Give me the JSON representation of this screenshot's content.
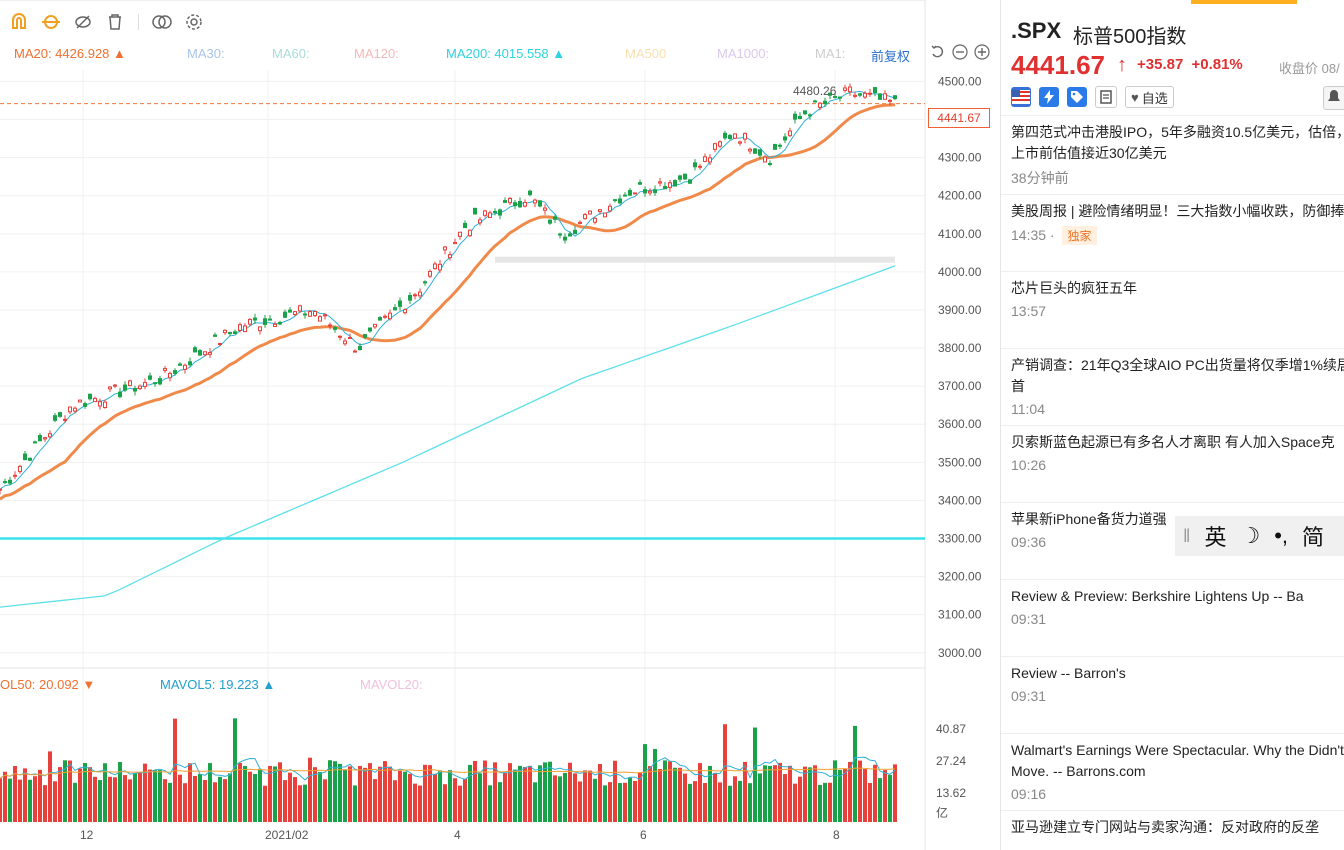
{
  "toolbar": {
    "icons": [
      "magnet-icon",
      "link-icon",
      "eye-off-icon",
      "trash-icon",
      "compare-icon",
      "gear-icon"
    ]
  },
  "ma_indicators": {
    "ma20": "MA20: 4426.928 ▲",
    "ma30": "MA30:",
    "ma60": "MA60:",
    "ma120": "MA120:",
    "ma200": "MA200: 4015.558 ▲",
    "ma500": "MA500",
    "ma1000": "MA1000:",
    "ma1": "MA1:",
    "adjust": "前复权"
  },
  "chart_data": {
    "type": "candlestick",
    "y_ticks": [
      "4500.00",
      "4400.00",
      "4300.00",
      "4200.00",
      "4100.00",
      "4000.00",
      "3900.00",
      "3800.00",
      "3700.00",
      "3600.00",
      "3500.00",
      "3400.00",
      "3300.00",
      "3200.00",
      "3100.00",
      "3000.00"
    ],
    "ylim": [
      2960,
      4530
    ],
    "x_ticks": [
      "12",
      "2021/02",
      "4",
      "6",
      "8"
    ],
    "high_label": "4480.26",
    "current_price": "4441.67",
    "ma20_last": 4426.928,
    "ma200_last": 4015.558,
    "horizontal_line": 3300,
    "series_trend": [
      {
        "x": 0,
        "close": 3430
      },
      {
        "x": 0.08,
        "close": 3650
      },
      {
        "x": 0.18,
        "close": 3720
      },
      {
        "x": 0.27,
        "close": 3860
      },
      {
        "x": 0.35,
        "close": 3900
      },
      {
        "x": 0.4,
        "close": 3800
      },
      {
        "x": 0.47,
        "close": 3960
      },
      {
        "x": 0.52,
        "close": 4120
      },
      {
        "x": 0.59,
        "close": 4200
      },
      {
        "x": 0.63,
        "close": 4100
      },
      {
        "x": 0.7,
        "close": 4210
      },
      {
        "x": 0.77,
        "close": 4250
      },
      {
        "x": 0.82,
        "close": 4370
      },
      {
        "x": 0.86,
        "close": 4300
      },
      {
        "x": 0.9,
        "close": 4420
      },
      {
        "x": 0.95,
        "close": 4470
      },
      {
        "x": 1.0,
        "close": 4441.67
      }
    ],
    "ma200_trend": [
      {
        "x": 0,
        "v": 3120
      },
      {
        "x": 0.12,
        "v": 3150
      },
      {
        "x": 0.25,
        "v": 3300
      },
      {
        "x": 0.45,
        "v": 3500
      },
      {
        "x": 0.65,
        "v": 3720
      },
      {
        "x": 0.82,
        "v": 3860
      },
      {
        "x": 1.0,
        "v": 4015.558
      }
    ]
  },
  "volume": {
    "mavol50": "OL50: 20.092 ▼",
    "mavol5": "MAVOL5: 19.223 ▲",
    "mavol20": "MAVOL20:",
    "y_ticks": [
      "40.87",
      "27.24",
      "13.62",
      "亿"
    ]
  },
  "quote": {
    "symbol": ".SPX",
    "name": "标普500指数",
    "price": "4441.67",
    "arrow": "↑",
    "change": "+35.87",
    "change_pct": "+0.81%",
    "close_label": "收盘价 08/",
    "favorite": "自选"
  },
  "news": [
    {
      "title": "第四范式冲击港股IPO，5年多融资10.5亿美元，估倍，上市前估值接近30亿美元",
      "time": "38分钟前",
      "tag": ""
    },
    {
      "title": "美股周报 | 避险情绪明显！三大指数小幅收跌，防御捧",
      "time": "14:35 ·",
      "tag": "独家"
    },
    {
      "title": "芯片巨头的疯狂五年",
      "time": "13:57",
      "tag": ""
    },
    {
      "title": "产销调查：21年Q3全球AIO PC出货量将仅季增1%续居首",
      "time": "11:04",
      "tag": ""
    },
    {
      "title": "贝索斯蓝色起源已有多名人才离职 有人加入Space克",
      "time": "10:26",
      "tag": ""
    },
    {
      "title": "苹果新iPhone备货力道强",
      "time": "09:36",
      "tag": ""
    },
    {
      "title": "Review & Preview: Berkshire Lightens Up -- Ba",
      "time": "09:31",
      "tag": ""
    },
    {
      "title": "Review -- Barron's",
      "time": "09:31",
      "tag": ""
    },
    {
      "title": "Walmart's Earnings Were Spectacular. Why the Didn't Move. -- Barrons.com",
      "time": "09:16",
      "tag": ""
    },
    {
      "title": "亚马逊建立专门网站与卖家沟通：反对政府的反垄",
      "time": "",
      "tag": ""
    }
  ],
  "ime": {
    "lang": "英",
    "moon": "☽",
    "punct": "•,",
    "mode": "简"
  },
  "colors": {
    "up": "#e8403a",
    "down": "#1aa24a",
    "ma20": "#f08a4b",
    "ma200": "#5ee0ea",
    "accent": "#f0a020"
  }
}
